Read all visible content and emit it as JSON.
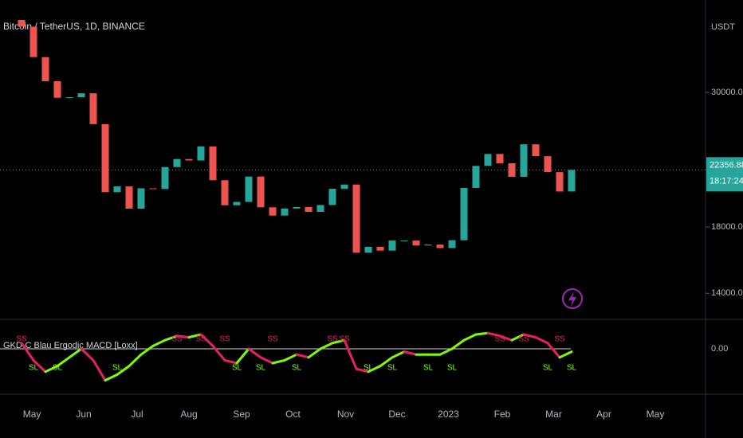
{
  "chart_data": {
    "type": "candlestick",
    "title": "Bitcoin / TetherUS, 1D, BINANCE",
    "currency": "USDT",
    "countdown": "18:17:24",
    "log_scale": true,
    "up_color": "#26a69a",
    "down_color": "#ef5350",
    "ylim": [
      12720,
      42600
    ],
    "yticks": [
      {
        "value": 30000,
        "label": "30000.00"
      },
      {
        "value": 18000,
        "label": "18000.00"
      },
      {
        "value": 14000,
        "label": "14000.00"
      }
    ],
    "xlim": [
      -1.8,
      57.2
    ],
    "xticks": [
      {
        "value": 0.87,
        "label": "May"
      },
      {
        "value": 5.2,
        "label": "Jun"
      },
      {
        "value": 9.67,
        "label": "Jul"
      },
      {
        "value": 14.0,
        "label": "Aug"
      },
      {
        "value": 18.4,
        "label": "Sep"
      },
      {
        "value": 22.7,
        "label": "Oct"
      },
      {
        "value": 27.1,
        "label": "Nov"
      },
      {
        "value": 31.4,
        "label": "Dec"
      },
      {
        "value": 35.7,
        "label": "2023"
      },
      {
        "value": 40.2,
        "label": "Feb"
      },
      {
        "value": 44.5,
        "label": "Mar"
      },
      {
        "value": 48.7,
        "label": "Apr"
      },
      {
        "value": 53.0,
        "label": "May"
      }
    ],
    "candles": {
      "x": [
        0,
        1,
        2,
        3,
        4,
        5,
        6,
        7,
        8,
        9,
        10,
        11,
        12,
        13,
        14,
        15,
        16,
        17,
        18,
        19,
        20,
        21,
        22,
        23,
        24,
        25,
        26,
        27,
        28,
        29,
        30,
        31,
        32,
        33,
        34,
        35,
        36,
        37,
        38,
        39,
        40,
        41,
        42,
        43,
        44,
        45,
        46
      ],
      "open": [
        39500,
        38500,
        34300,
        31300,
        29400,
        29450,
        29900,
        26600,
        20550,
        21000,
        19300,
        20850,
        20800,
        22600,
        23300,
        23170,
        24440,
        21500,
        19550,
        19800,
        21800,
        19400,
        18800,
        19310,
        19420,
        19070,
        19570,
        20810,
        21150,
        16330,
        16700,
        16460,
        17100,
        17100,
        16780,
        16840,
        16620,
        17120,
        20880,
        22700,
        23750,
        22930,
        21780,
        24640,
        23550,
        22170,
        20600
      ],
      "close": [
        38500,
        34300,
        31300,
        29400,
        29450,
        29900,
        26600,
        20550,
        21000,
        19300,
        20850,
        20800,
        22600,
        23300,
        23170,
        24440,
        21500,
        19550,
        19800,
        21800,
        19400,
        18800,
        19310,
        19420,
        19070,
        19570,
        20810,
        21150,
        16330,
        16700,
        16460,
        17100,
        17100,
        16780,
        16840,
        16620,
        17120,
        20880,
        22700,
        23750,
        22930,
        21780,
        24640,
        23550,
        22170,
        20600,
        22356.88
      ]
    },
    "indicator": {
      "name": "GKD-C Blau Ergodic MACD [Loxx]",
      "up_color": "#7cfc00",
      "down_color": "#e91e63",
      "ylim": [
        -1.5,
        1.0
      ],
      "yticks": [
        {
          "value": 0,
          "label": "0.00"
        }
      ],
      "values": [
        0.2,
        -0.4,
        -0.8,
        -0.6,
        -0.3,
        0.0,
        -0.4,
        -1.1,
        -0.9,
        -0.6,
        -0.2,
        0.1,
        0.3,
        0.45,
        0.4,
        0.5,
        0.1,
        -0.4,
        -0.5,
        0.0,
        -0.3,
        -0.5,
        -0.4,
        -0.2,
        -0.3,
        0.0,
        0.2,
        0.3,
        -0.7,
        -0.8,
        -0.6,
        -0.3,
        -0.1,
        -0.2,
        -0.2,
        -0.2,
        0.0,
        0.3,
        0.5,
        0.55,
        0.45,
        0.3,
        0.5,
        0.4,
        0.2,
        -0.3,
        -0.1
      ],
      "signals": [
        {
          "text": "SS",
          "at": 0
        },
        {
          "text": "SL",
          "at": 1
        },
        {
          "text": "SL",
          "at": 3
        },
        {
          "text": "SL",
          "at": 8
        },
        {
          "text": "SS",
          "at": 13
        },
        {
          "text": "SS",
          "at": 15
        },
        {
          "text": "SS",
          "at": 17
        },
        {
          "text": "SL",
          "at": 18
        },
        {
          "text": "SL",
          "at": 20
        },
        {
          "text": "SS",
          "at": 21
        },
        {
          "text": "SL",
          "at": 23
        },
        {
          "text": "SS",
          "at": 26
        },
        {
          "text": "SS",
          "at": 27
        },
        {
          "text": "SL",
          "at": 29
        },
        {
          "text": "SL",
          "at": 31
        },
        {
          "text": "SL",
          "at": 34
        },
        {
          "text": "SL",
          "at": 36
        },
        {
          "text": "SS",
          "at": 40
        },
        {
          "text": "SS",
          "at": 42
        },
        {
          "text": "SL",
          "at": 44
        },
        {
          "text": "SS",
          "at": 45
        },
        {
          "text": "SL",
          "at": 46
        }
      ]
    }
  }
}
